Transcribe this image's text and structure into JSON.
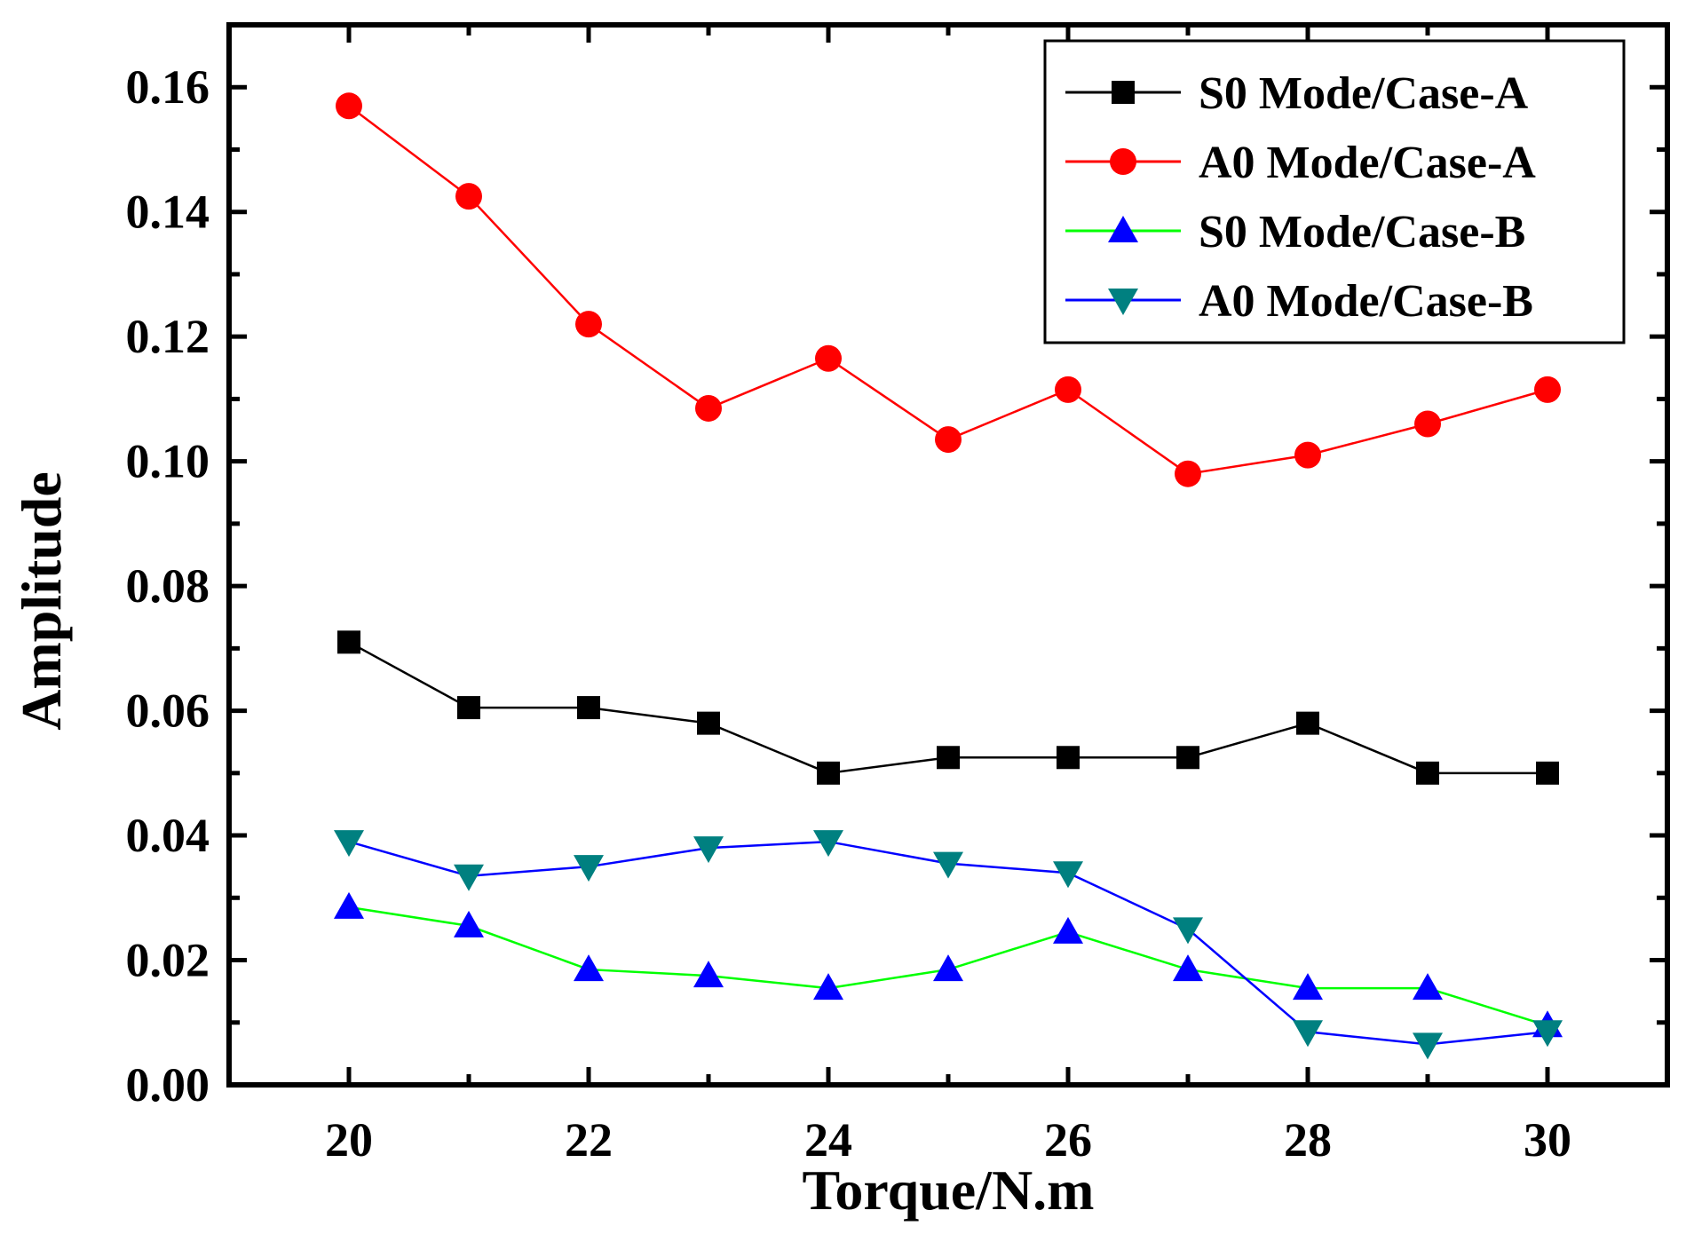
{
  "chart_data": {
    "type": "line",
    "title": "",
    "xlabel": "Torque/N.m",
    "ylabel": "Amplitude",
    "xlim": [
      19,
      31
    ],
    "ylim": [
      0,
      0.17
    ],
    "x_ticks": [
      20,
      22,
      24,
      26,
      28,
      30
    ],
    "x_tick_labels": [
      "20",
      "22",
      "24",
      "26",
      "28",
      "30"
    ],
    "y_ticks": [
      0,
      0.02,
      0.04,
      0.06,
      0.08,
      0.1,
      0.12,
      0.14,
      0.16
    ],
    "y_tick_labels": [
      "0.00",
      "0.02",
      "0.04",
      "0.06",
      "0.08",
      "0.10",
      "0.12",
      "0.14",
      "0.16"
    ],
    "grid": false,
    "legend_position": "top-right",
    "x": [
      20,
      21,
      22,
      23,
      24,
      25,
      26,
      27,
      28,
      29,
      30
    ],
    "series": [
      {
        "name": "S0 Mode/Case-A",
        "line_color": "#000000",
        "marker_color": "#000000",
        "marker": "square",
        "values": [
          0.071,
          0.0605,
          0.0605,
          0.058,
          0.05,
          0.0525,
          0.0525,
          0.0525,
          0.058,
          0.05,
          0.05
        ]
      },
      {
        "name": "A0 Mode/Case-A",
        "line_color": "#ff0000",
        "marker_color": "#ff0000",
        "marker": "circle",
        "values": [
          0.157,
          0.1425,
          0.122,
          0.1085,
          0.1165,
          0.1035,
          0.1115,
          0.098,
          0.101,
          0.106,
          0.1115
        ]
      },
      {
        "name": "S0 Mode/Case-B",
        "line_color": "#00ff00",
        "marker_color": "#0000ff",
        "marker": "triangle-up",
        "values": [
          0.0285,
          0.0255,
          0.0185,
          0.0175,
          0.0155,
          0.0185,
          0.0245,
          0.0185,
          0.0155,
          0.0155,
          0.0095
        ]
      },
      {
        "name": "A0 Mode/Case-B",
        "line_color": "#0000ff",
        "marker_color": "#008080",
        "marker": "triangle-down",
        "values": [
          0.039,
          0.0335,
          0.035,
          0.038,
          0.039,
          0.0355,
          0.034,
          0.025,
          0.0085,
          0.0065,
          0.0085
        ]
      }
    ]
  }
}
